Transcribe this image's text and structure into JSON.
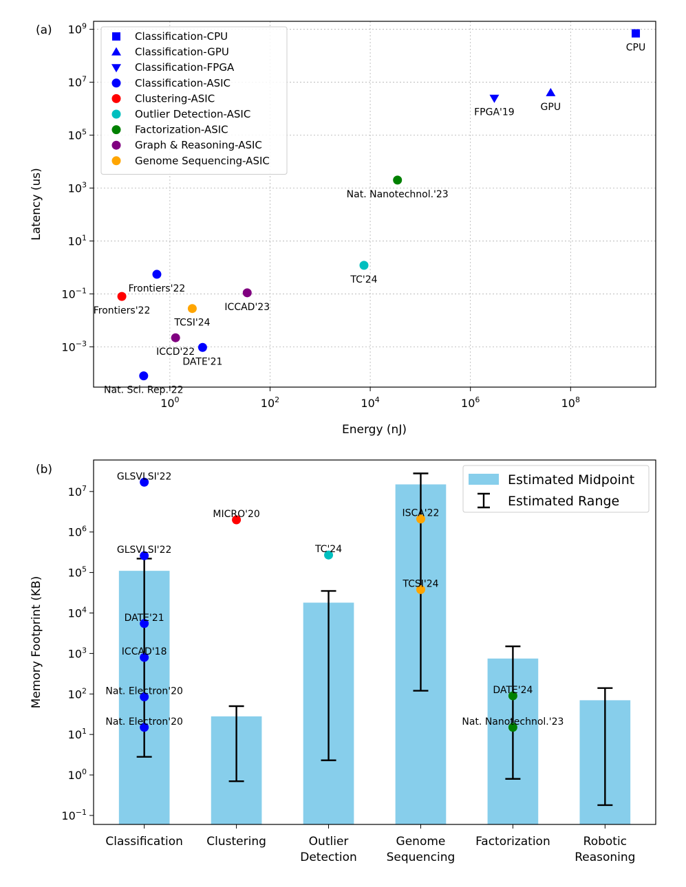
{
  "colors": {
    "blue": "#0000ff",
    "red": "#ff0000",
    "cyan": "#00bfbf",
    "green": "#008000",
    "purple": "#800080",
    "orange": "#ffa500",
    "bar": "#87ceeb",
    "errorbar": "#000000"
  },
  "chart_data": [
    {
      "panel_label": "(a)",
      "type": "scatter",
      "x_scale": "log",
      "y_scale": "log",
      "xlabel": "Energy (nJ)",
      "ylabel": "Latency (us)",
      "xlim": [
        0.03,
        5000000000
      ],
      "ylim": [
        3e-05,
        2000000000
      ],
      "grid": true,
      "x_ticks": [
        {
          "value": 1,
          "base": "10",
          "exp": "0"
        },
        {
          "value": 100,
          "base": "10",
          "exp": "2"
        },
        {
          "value": 10000,
          "base": "10",
          "exp": "4"
        },
        {
          "value": 1000000,
          "base": "10",
          "exp": "6"
        },
        {
          "value": 100000000,
          "base": "10",
          "exp": "8"
        }
      ],
      "y_ticks": [
        {
          "value": 0.001,
          "base": "10",
          "exp": "−3"
        },
        {
          "value": 0.1,
          "base": "10",
          "exp": "−1"
        },
        {
          "value": 10,
          "base": "10",
          "exp": "1"
        },
        {
          "value": 1000,
          "base": "10",
          "exp": "3"
        },
        {
          "value": 100000,
          "base": "10",
          "exp": "5"
        },
        {
          "value": 10000000,
          "base": "10",
          "exp": "7"
        },
        {
          "value": 1000000000,
          "base": "10",
          "exp": "9"
        }
      ],
      "legend_position": "top-left",
      "legend": [
        {
          "name": "Classification-CPU",
          "marker": "square",
          "color": "blue"
        },
        {
          "name": "Classification-GPU",
          "marker": "triangle-up",
          "color": "blue"
        },
        {
          "name": "Classification-FPGA",
          "marker": "triangle-down",
          "color": "blue"
        },
        {
          "name": "Classification-ASIC",
          "marker": "circle",
          "color": "blue"
        },
        {
          "name": "Clustering-ASIC",
          "marker": "circle",
          "color": "red"
        },
        {
          "name": "Outlier Detection-ASIC",
          "marker": "circle",
          "color": "cyan"
        },
        {
          "name": "Factorization-ASIC",
          "marker": "circle",
          "color": "green"
        },
        {
          "name": "Graph & Reasoning-ASIC",
          "marker": "circle",
          "color": "purple"
        },
        {
          "name": "Genome Sequencing-ASIC",
          "marker": "circle",
          "color": "orange"
        }
      ],
      "points": [
        {
          "label": "CPU",
          "x": 2000000000,
          "y": 700000000,
          "marker": "square",
          "color": "blue",
          "label_pos": "below"
        },
        {
          "label": "GPU",
          "x": 40000000,
          "y": 4000000,
          "marker": "triangle-up",
          "color": "blue",
          "label_pos": "below"
        },
        {
          "label": "FPGA'19",
          "x": 3000000,
          "y": 2500000,
          "marker": "triangle-down",
          "color": "blue",
          "label_pos": "below"
        },
        {
          "label": "Nat. Nanotechnol.'23",
          "x": 35000,
          "y": 2000,
          "marker": "circle",
          "color": "green",
          "label_pos": "below"
        },
        {
          "label": "TC'24",
          "x": 7500,
          "y": 1.2,
          "marker": "circle",
          "color": "cyan",
          "label_pos": "below"
        },
        {
          "label": "Frontiers'22",
          "x": 0.55,
          "y": 0.55,
          "marker": "circle",
          "color": "blue",
          "label_pos": "below"
        },
        {
          "label": "Frontiers'22",
          "x": 0.11,
          "y": 0.08,
          "marker": "circle",
          "color": "red",
          "label_pos": "below"
        },
        {
          "label": "ICCAD'23",
          "x": 35,
          "y": 0.11,
          "marker": "circle",
          "color": "purple",
          "label_pos": "below"
        },
        {
          "label": "TCSI'24",
          "x": 2.8,
          "y": 0.028,
          "marker": "circle",
          "color": "orange",
          "label_pos": "below"
        },
        {
          "label": "ICCD'22",
          "x": 1.3,
          "y": 0.0022,
          "marker": "circle",
          "color": "purple",
          "label_pos": "below"
        },
        {
          "label": "DATE'21",
          "x": 4.5,
          "y": 0.00095,
          "marker": "circle",
          "color": "blue",
          "label_pos": "below"
        },
        {
          "label": "Nat. Sci. Rep.'22",
          "x": 0.3,
          "y": 8e-05,
          "marker": "circle",
          "color": "blue",
          "label_pos": "below"
        }
      ]
    },
    {
      "panel_label": "(b)",
      "type": "bar",
      "y_scale": "log",
      "ylabel": "Memory Footprint (KB)",
      "ylim": [
        0.06,
        60000000
      ],
      "categories": [
        [
          "Classification"
        ],
        [
          "Clustering"
        ],
        [
          "Outlier",
          "Detection"
        ],
        [
          "Genome",
          "Sequencing"
        ],
        [
          "Factorization"
        ],
        [
          "Robotic",
          "Reasoning"
        ]
      ],
      "y_ticks": [
        {
          "value": 0.1,
          "base": "10",
          "exp": "−1"
        },
        {
          "value": 1,
          "base": "10",
          "exp": "0"
        },
        {
          "value": 10,
          "base": "10",
          "exp": "1"
        },
        {
          "value": 100,
          "base": "10",
          "exp": "2"
        },
        {
          "value": 1000,
          "base": "10",
          "exp": "3"
        },
        {
          "value": 10000,
          "base": "10",
          "exp": "4"
        },
        {
          "value": 100000,
          "base": "10",
          "exp": "5"
        },
        {
          "value": 1000000,
          "base": "10",
          "exp": "6"
        },
        {
          "value": 10000000,
          "base": "10",
          "exp": "7"
        }
      ],
      "legend_position": "top-right",
      "legend": [
        {
          "name": "Estimated Midpoint",
          "kind": "bar"
        },
        {
          "name": "Estimated Range",
          "kind": "errorbar"
        }
      ],
      "midpoints": [
        110000,
        28,
        18000,
        15000000,
        750,
        70
      ],
      "ranges": [
        [
          2.8,
          220000
        ],
        [
          0.7,
          50
        ],
        [
          2.3,
          35000
        ],
        [
          120,
          28000000
        ],
        [
          0.8,
          1500
        ],
        [
          0.18,
          140
        ]
      ],
      "points": [
        {
          "label": "GLSVLSI'22",
          "category": 0,
          "y": 17000000,
          "color": "blue"
        },
        {
          "label": "GLSVLSI'22",
          "category": 0,
          "y": 260000,
          "color": "blue"
        },
        {
          "label": "DATE'21",
          "category": 0,
          "y": 5500,
          "color": "blue"
        },
        {
          "label": "ICCAD'18",
          "category": 0,
          "y": 800,
          "color": "blue"
        },
        {
          "label": "Nat. Electron'20",
          "category": 0,
          "y": 85,
          "color": "blue"
        },
        {
          "label": "Nat. Electron'20",
          "category": 0,
          "y": 15,
          "color": "blue"
        },
        {
          "label": "MICRO'20",
          "category": 1,
          "y": 2000000,
          "color": "red"
        },
        {
          "label": "TC'24",
          "category": 2,
          "y": 270000,
          "color": "cyan"
        },
        {
          "label": "ISCA'22",
          "category": 3,
          "y": 2100000,
          "color": "orange"
        },
        {
          "label": "TCSI'24",
          "category": 3,
          "y": 38000,
          "color": "orange"
        },
        {
          "label": "DATE'24",
          "category": 4,
          "y": 90,
          "color": "green"
        },
        {
          "label": "Nat. Nanotechnol.'23",
          "category": 4,
          "y": 15,
          "color": "green"
        }
      ]
    }
  ]
}
